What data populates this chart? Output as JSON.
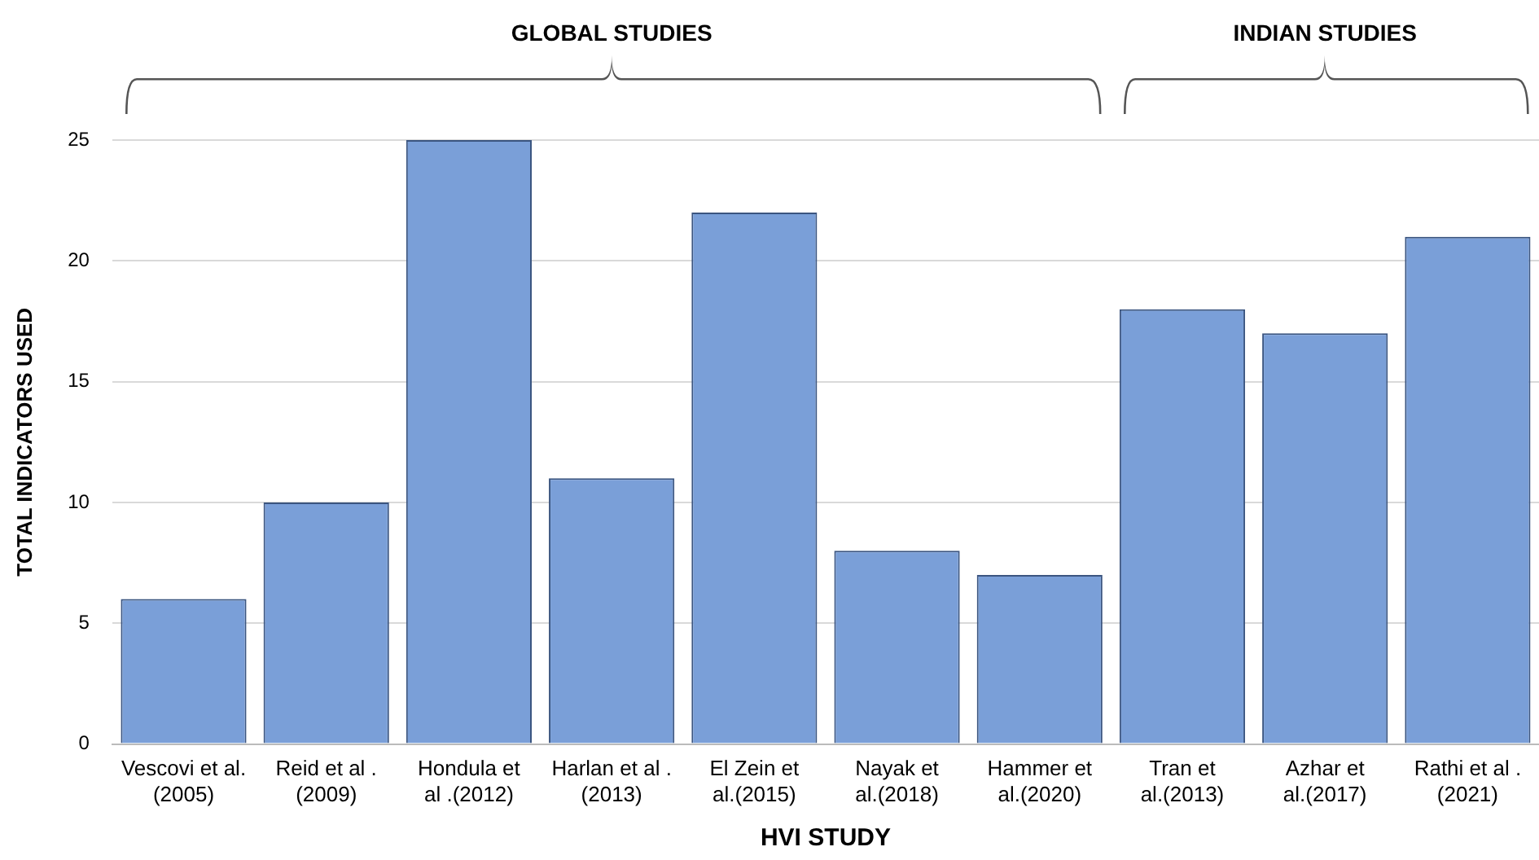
{
  "chart_data": {
    "type": "bar",
    "xlabel": "HVI STUDY",
    "ylabel": "TOTAL INDICATORS USED",
    "categories": [
      "Vescovi et al.\n(2005)",
      "Reid et al .\n(2009)",
      "Hondula et\nal .(2012)",
      "Harlan et al .\n(2013)",
      "El Zein et\nal.(2015)",
      "Nayak et\nal.(2018)",
      "Hammer et\nal.(2020)",
      "Tran et\nal.(2013)",
      "Azhar et\nal.(2017)",
      "Rathi et al .\n(2021)"
    ],
    "values": [
      6,
      10,
      25,
      11,
      22,
      8,
      7,
      18,
      17,
      21
    ],
    "color": "#7a9fd8",
    "ylim": [
      0,
      25
    ],
    "yticks": [
      0,
      5,
      10,
      15,
      20,
      25
    ],
    "grid": "y",
    "legend": false,
    "annotations": [
      "GLOBAL STUDIES",
      "INDIAN STUDIES"
    ]
  }
}
